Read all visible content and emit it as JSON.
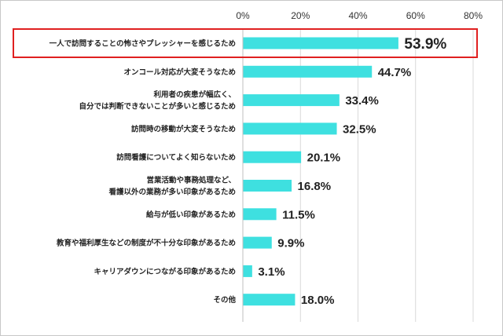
{
  "chart_data": {
    "type": "bar",
    "orientation": "horizontal",
    "categories": [
      [
        "一人で訪問することの怖さやプレッシャーを感じるため"
      ],
      [
        "オンコール対応が大変そうなため"
      ],
      [
        "利用者の疾患が幅広く、",
        "自分では判断できないことが多いと感じるため"
      ],
      [
        "訪問時の移動が大変そうなため"
      ],
      [
        "訪問看護についてよく知らないため"
      ],
      [
        "営業活動や事務処理など、",
        "看護以外の業務が多い印象があるため"
      ],
      [
        "給与が低い印象があるため"
      ],
      [
        "教育や福利厚生などの制度が不十分な印象があるため"
      ],
      [
        "キャリアダウンにつながる印象があるため"
      ],
      [
        "その他"
      ]
    ],
    "values": [
      53.9,
      44.7,
      33.4,
      32.5,
      20.1,
      16.8,
      11.5,
      9.9,
      3.1,
      18.0
    ],
    "value_labels": [
      "53.9%",
      "44.7%",
      "33.4%",
      "32.5%",
      "20.1%",
      "16.8%",
      "11.5%",
      "9.9%",
      "3.1%",
      "18.0%"
    ],
    "xlim": [
      0,
      80
    ],
    "ticks": [
      0,
      20,
      40,
      60,
      80
    ],
    "tick_labels": [
      "0%",
      "20%",
      "40%",
      "60%",
      "80%"
    ],
    "highlighted_index": 0,
    "grid": true,
    "title": "",
    "xlabel": "",
    "ylabel": ""
  },
  "colors": {
    "bar": "#3ee0e0",
    "grid": "#d9d9d9",
    "axis": "#bfbfbf",
    "highlight_border": "#e02020"
  }
}
